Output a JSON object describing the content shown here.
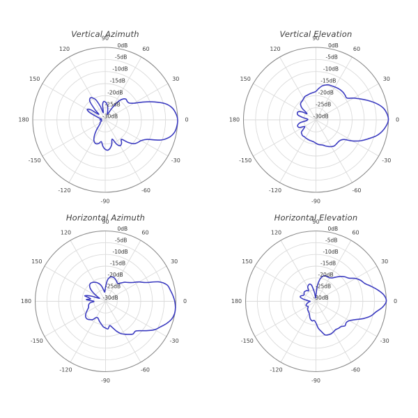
{
  "page": {
    "background": "#ffffff"
  },
  "chart_data": [
    {
      "type": "polar-line",
      "title": "Vertical Azimuth",
      "line_color": "#3a3ac0",
      "rlim": [
        -30,
        0
      ],
      "radial_tick_db": [
        0,
        -5,
        -10,
        -15,
        -20,
        -25,
        -30
      ],
      "radial_tick_labels": [
        "0dB",
        "-5dB",
        "-10dB",
        "-15dB",
        "-20dB",
        "-25dB",
        "-30dB"
      ],
      "angle_tick_deg": [
        0,
        30,
        60,
        90,
        120,
        150,
        180,
        -150,
        -120,
        -90,
        -60,
        -30
      ],
      "angle_tick_labels": [
        "0",
        "30",
        "60",
        "90",
        "120",
        "150",
        "180",
        "-150",
        "-120",
        "-90",
        "-60",
        "-30"
      ],
      "angles_deg": [
        -180,
        -175,
        -170,
        -165,
        -160,
        -155,
        -150,
        -145,
        -140,
        -135,
        -130,
        -125,
        -120,
        -115,
        -110,
        -105,
        -100,
        -95,
        -90,
        -85,
        -80,
        -75,
        -70,
        -65,
        -60,
        -55,
        -50,
        -45,
        -40,
        -35,
        -30,
        -25,
        -20,
        -15,
        -10,
        -5,
        0,
        5,
        10,
        15,
        20,
        25,
        30,
        35,
        40,
        45,
        50,
        55,
        60,
        65,
        70,
        75,
        80,
        85,
        90,
        95,
        100,
        105,
        110,
        115,
        120,
        125,
        130,
        135,
        140,
        145,
        150,
        155,
        160,
        165,
        170,
        175
      ],
      "gain_db": [
        -27.8,
        -28.3,
        -28.5,
        -28.5,
        -28.2,
        -27.8,
        -27.5,
        -27.5,
        -27,
        -26,
        -24.3,
        -22.3,
        -20.6,
        -19.6,
        -19.4,
        -19.9,
        -20.8,
        -19,
        -17.8,
        -17.4,
        -18.1,
        -19.5,
        -21.5,
        -19,
        -17.6,
        -18.2,
        -19.5,
        -16.9,
        -14.6,
        -13.6,
        -12.8,
        -10.8,
        -5.5,
        -2.4,
        -0.8,
        -0.2,
        0,
        -0.6,
        -1.8,
        -4.2,
        -8.3,
        -12.5,
        -16.2,
        -17.9,
        -18.1,
        -17.9,
        -18.8,
        -21,
        -24.5,
        -27,
        -27.5,
        -26,
        -24.3,
        -23.2,
        -22.6,
        -22.4,
        -23.8,
        -27,
        -24,
        -20.9,
        -19.5,
        -19.1,
        -20.2,
        -24,
        -26.5,
        -22.8,
        -21.4,
        -23,
        -26.5,
        -28,
        -28.5,
        -28.2
      ]
    },
    {
      "type": "polar-line",
      "title": "Vertical Elevation",
      "line_color": "#3a3ac0",
      "rlim": [
        -30,
        0
      ],
      "radial_tick_db": [
        0,
        -5,
        -10,
        -15,
        -20,
        -25,
        -30
      ],
      "radial_tick_labels": [
        "0dB",
        "-5dB",
        "-10dB",
        "-15dB",
        "-20dB",
        "-25dB",
        "-30dB"
      ],
      "angle_tick_deg": [
        0,
        30,
        60,
        90,
        120,
        150,
        180,
        -150,
        -120,
        -90,
        -60,
        -30
      ],
      "angle_tick_labels": [
        "0",
        "30",
        "60",
        "90",
        "120",
        "150",
        "180",
        "-150",
        "-120",
        "-90",
        "-60",
        "-30"
      ],
      "angles_deg": [
        -180,
        -175,
        -170,
        -165,
        -160,
        -155,
        -150,
        -145,
        -140,
        -135,
        -130,
        -125,
        -120,
        -115,
        -110,
        -105,
        -100,
        -95,
        -90,
        -85,
        -80,
        -75,
        -70,
        -65,
        -60,
        -55,
        -50,
        -45,
        -40,
        -35,
        -30,
        -25,
        -20,
        -15,
        -10,
        -5,
        0,
        5,
        10,
        15,
        20,
        25,
        30,
        35,
        40,
        45,
        50,
        55,
        60,
        65,
        70,
        75,
        80,
        85,
        90,
        95,
        100,
        105,
        110,
        115,
        120,
        125,
        130,
        135,
        140,
        145,
        150,
        155,
        160,
        165,
        170,
        175
      ],
      "gain_db": [
        -26.5,
        -26,
        -23.5,
        -22.3,
        -22,
        -22.5,
        -24.5,
        -24,
        -22.2,
        -21.7,
        -21.4,
        -21.5,
        -21.4,
        -21.3,
        -21.2,
        -21.1,
        -21,
        -20.8,
        -20.3,
        -19.8,
        -19.5,
        -19.2,
        -18.5,
        -17.8,
        -17.2,
        -16.8,
        -16.9,
        -17,
        -16.8,
        -15.8,
        -12.5,
        -9.5,
        -7,
        -4.2,
        -2.2,
        -0.8,
        0,
        -0.5,
        -1.7,
        -4,
        -6.8,
        -9.6,
        -12,
        -14.3,
        -14.2,
        -14,
        -14,
        -14.1,
        -14.3,
        -14.5,
        -14.6,
        -15.1,
        -15.8,
        -17,
        -18.2,
        -18.6,
        -18.8,
        -19,
        -19.2,
        -19.3,
        -19.8,
        -20.3,
        -20.5,
        -21,
        -22.5,
        -25.5,
        -23.5,
        -22,
        -21.8,
        -22.3,
        -24.5,
        -26.5
      ]
    },
    {
      "type": "polar-line",
      "title": "Horizontal Azimuth",
      "line_color": "#3a3ac0",
      "rlim": [
        -30,
        0
      ],
      "radial_tick_db": [
        0,
        -5,
        -10,
        -15,
        -20,
        -25,
        -30
      ],
      "radial_tick_labels": [
        "0dB",
        "-5dB",
        "-10dB",
        "-15dB",
        "-20dB",
        "-25dB",
        "-30dB"
      ],
      "angle_tick_deg": [
        0,
        30,
        60,
        90,
        120,
        150,
        180,
        -150,
        -120,
        -90,
        -60,
        -30
      ],
      "angle_tick_labels": [
        "0",
        "30",
        "60",
        "90",
        "120",
        "150",
        "180",
        "-150",
        "-120",
        "-90",
        "-60",
        "-30"
      ],
      "angles_deg": [
        -180,
        -175,
        -170,
        -165,
        -160,
        -155,
        -150,
        -145,
        -140,
        -135,
        -130,
        -125,
        -120,
        -115,
        -110,
        -105,
        -100,
        -95,
        -90,
        -85,
        -80,
        -75,
        -70,
        -65,
        -60,
        -55,
        -50,
        -45,
        -40,
        -35,
        -30,
        -25,
        -20,
        -15,
        -10,
        -5,
        0,
        5,
        10,
        15,
        20,
        25,
        30,
        35,
        40,
        45,
        50,
        55,
        60,
        65,
        70,
        75,
        80,
        85,
        90,
        95,
        100,
        105,
        110,
        115,
        120,
        125,
        130,
        135,
        140,
        145,
        150,
        155,
        160,
        165,
        170,
        175
      ],
      "gain_db": [
        -25,
        -23.5,
        -22.8,
        -22.5,
        -22.3,
        -21.5,
        -20.5,
        -19.6,
        -19.1,
        -19.2,
        -19.8,
        -20.5,
        -22,
        -22.2,
        -21.6,
        -20.8,
        -20,
        -19.1,
        -18.6,
        -18.2,
        -19.5,
        -18.3,
        -16.5,
        -14.9,
        -13.8,
        -12.8,
        -11.8,
        -12,
        -10.5,
        -8.2,
        -5.8,
        -4.2,
        -2.3,
        -0.8,
        -0.1,
        -0.1,
        -0.5,
        -1.2,
        -2,
        -2.9,
        -5.8,
        -11,
        -13.5,
        -16,
        -17.5,
        -18.5,
        -19.8,
        -20.8,
        -20.4,
        -19.8,
        -19.3,
        -19.2,
        -19.6,
        -21,
        -24,
        -26,
        -25,
        -23.2,
        -22,
        -21.2,
        -20.6,
        -20.2,
        -20,
        -20.4,
        -21.5,
        -23.5,
        -26,
        -27,
        -23.5,
        -20.8,
        -23.5,
        -21.8
      ]
    },
    {
      "type": "polar-line",
      "title": "Horizontal Elevation",
      "line_color": "#3a3ac0",
      "rlim": [
        -30,
        0
      ],
      "radial_tick_db": [
        0,
        -5,
        -10,
        -15,
        -20,
        -25,
        -30
      ],
      "radial_tick_labels": [
        "0dB",
        "-5dB",
        "-10dB",
        "-15dB",
        "-20dB",
        "-25dB",
        "-30dB"
      ],
      "angle_tick_deg": [
        0,
        30,
        60,
        90,
        120,
        150,
        180,
        -150,
        -120,
        -90,
        -60,
        -30
      ],
      "angle_tick_labels": [
        "0",
        "30",
        "60",
        "90",
        "120",
        "150",
        "180",
        "-150",
        "-120",
        "-90",
        "-60",
        "-30"
      ],
      "angles_deg": [
        -180,
        -175,
        -170,
        -165,
        -160,
        -155,
        -150,
        -145,
        -140,
        -135,
        -130,
        -125,
        -120,
        -115,
        -110,
        -105,
        -100,
        -95,
        -90,
        -85,
        -80,
        -75,
        -70,
        -65,
        -60,
        -55,
        -50,
        -45,
        -40,
        -35,
        -30,
        -25,
        -20,
        -15,
        -10,
        -5,
        0,
        5,
        10,
        15,
        20,
        25,
        30,
        35,
        40,
        45,
        50,
        55,
        60,
        65,
        70,
        75,
        80,
        85,
        90,
        95,
        100,
        105,
        110,
        115,
        120,
        125,
        130,
        135,
        140,
        145,
        150,
        155,
        160,
        165,
        170,
        175
      ],
      "gain_db": [
        -27.5,
        -27,
        -26.5,
        -26,
        -25.5,
        -25.5,
        -25.8,
        -26,
        -25.5,
        -25,
        -24.8,
        -24.5,
        -24.2,
        -23.5,
        -22.5,
        -21.8,
        -21.5,
        -21.8,
        -20.8,
        -18.5,
        -17,
        -15.2,
        -14.8,
        -14.7,
        -15,
        -15.3,
        -15,
        -14.8,
        -13.8,
        -14.2,
        -13.5,
        -11.5,
        -8.5,
        -5.8,
        -4,
        -1.5,
        0,
        -0.8,
        -3,
        -5.5,
        -7.8,
        -8.9,
        -10.5,
        -12.8,
        -13.8,
        -15,
        -16.5,
        -17.8,
        -18.4,
        -18.5,
        -18.4,
        -19,
        -20.5,
        -23.5,
        -27.5,
        -28.5,
        -26,
        -23,
        -22.2,
        -22.4,
        -23,
        -24.5,
        -24,
        -23.8,
        -23.6,
        -23.8,
        -24.2,
        -24,
        -23.2,
        -23.1,
        -24.5,
        -26.5
      ]
    }
  ]
}
